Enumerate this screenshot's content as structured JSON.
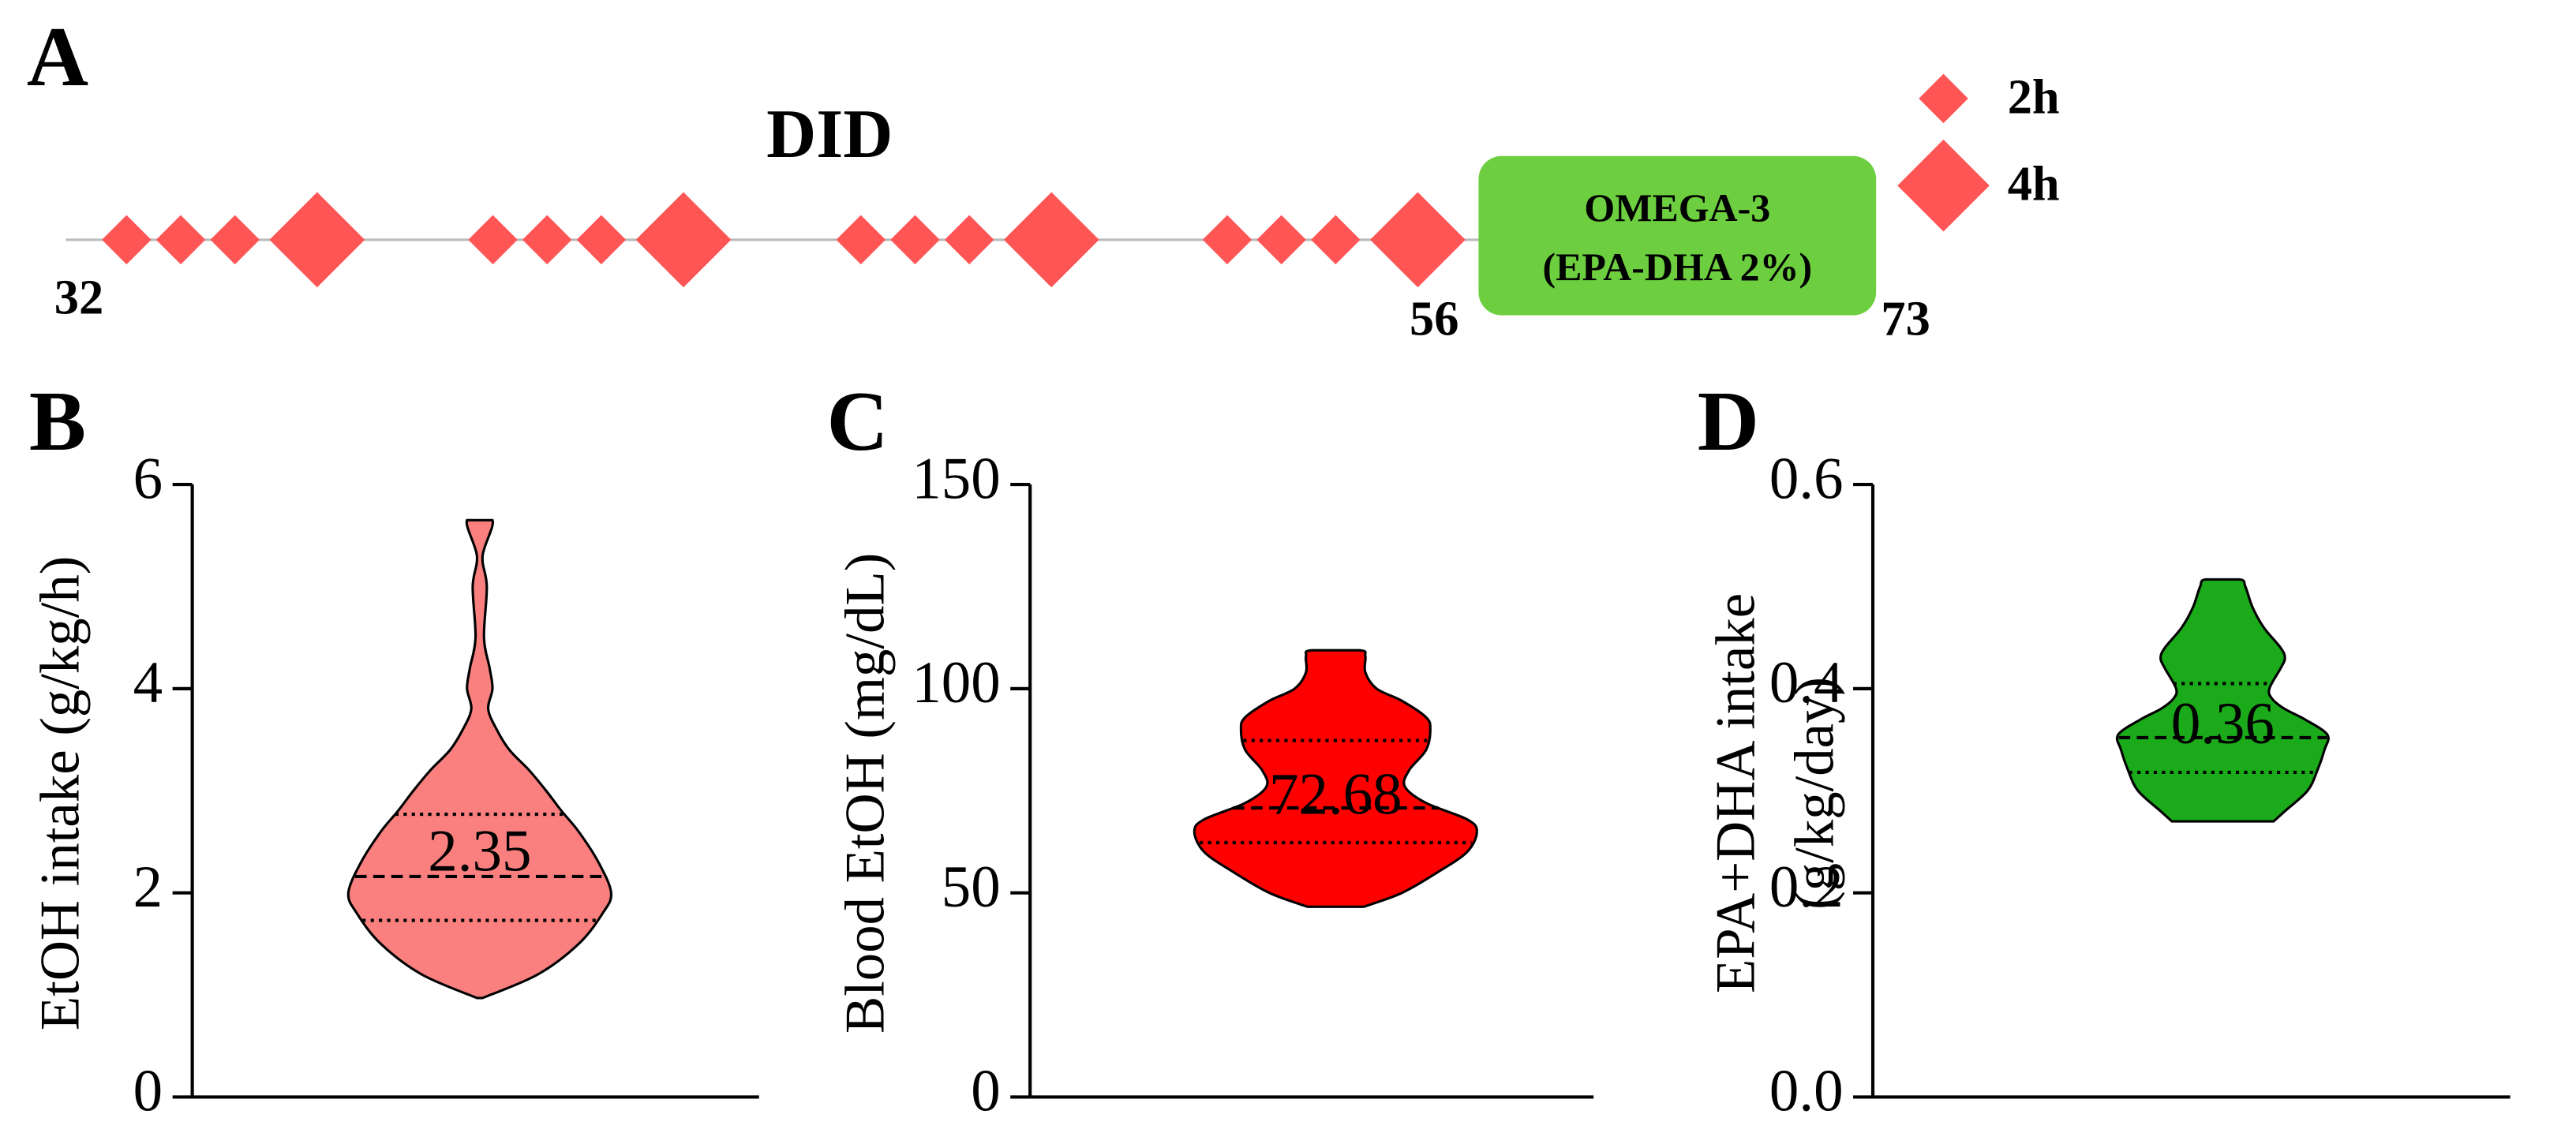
{
  "timeline": {
    "label": "A",
    "title": "DID",
    "day_labels": [
      "32",
      "56",
      "73"
    ],
    "box_text": [
      "OMEGA-3",
      "(EPA-DHA 2%)"
    ],
    "legend": [
      "2h",
      "4h"
    ]
  },
  "chart_data": [
    {
      "type": "violin",
      "label": "B",
      "ylabel": [
        "EtOH intake (g/kg/h)"
      ],
      "color": "#fa8080",
      "ylim": [
        0,
        6
      ],
      "yticks": [
        0,
        2,
        4,
        6
      ],
      "mean": 2.35,
      "median": 2.16,
      "quartiles": [
        1.73,
        2.77
      ],
      "shape": {
        "y": [
          0.97,
          1.2,
          1.5,
          1.8,
          2.0,
          2.3,
          2.6,
          2.8,
          3.0,
          3.2,
          3.4,
          3.6,
          3.8,
          4.0,
          4.2,
          4.5,
          5.0,
          5.3,
          5.65
        ],
        "density": [
          0.02,
          0.41,
          0.7,
          0.87,
          0.93,
          0.84,
          0.7,
          0.58,
          0.47,
          0.35,
          0.21,
          0.12,
          0.06,
          0.09,
          0.07,
          0.03,
          0.05,
          0.02,
          0.09
        ]
      }
    },
    {
      "type": "violin",
      "label": "C",
      "ylabel": [
        "Blood EtOH (mg/dL)"
      ],
      "color": "#ff0000",
      "ylim": [
        0,
        150
      ],
      "yticks": [
        0,
        50,
        100,
        150
      ],
      "mean": 72.68,
      "median": 70.8,
      "quartiles": [
        62.3,
        87.3
      ],
      "shape": {
        "y": [
          46.6,
          50,
          55,
          60,
          65,
          68,
          72,
          76,
          80,
          85,
          90,
          93,
          97,
          100,
          104,
          108,
          109.4
        ],
        "density": [
          0.2,
          0.47,
          0.72,
          0.93,
          1.0,
          0.93,
          0.64,
          0.49,
          0.52,
          0.64,
          0.67,
          0.64,
          0.47,
          0.29,
          0.21,
          0.21,
          0.17
        ]
      }
    },
    {
      "type": "violin",
      "label": "D",
      "ylabel": [
        "EPA+DHA intake",
        "(g/kg/day)"
      ],
      "color": "#1aaa1a",
      "ylim": [
        0,
        0.6
      ],
      "yticks": [
        {
          "value": 0,
          "label": "0.0"
        },
        {
          "value": 0.2,
          "label": "0.2"
        },
        {
          "value": 0.4,
          "label": "0.4"
        },
        {
          "value": 0.6,
          "label": "0.6"
        }
      ],
      "mean": 0.36,
      "median": 0.352,
      "quartiles": [
        0.318,
        0.405
      ],
      "shape": {
        "y": [
          0.27,
          0.28,
          0.3,
          0.32,
          0.34,
          0.355,
          0.37,
          0.38,
          0.39,
          0.4,
          0.42,
          0.43,
          0.44,
          0.46,
          0.48,
          0.5,
          0.507
        ],
        "density": [
          0.36,
          0.44,
          0.6,
          0.67,
          0.72,
          0.74,
          0.58,
          0.44,
          0.35,
          0.33,
          0.41,
          0.44,
          0.41,
          0.29,
          0.21,
          0.16,
          0.12
        ]
      }
    }
  ]
}
